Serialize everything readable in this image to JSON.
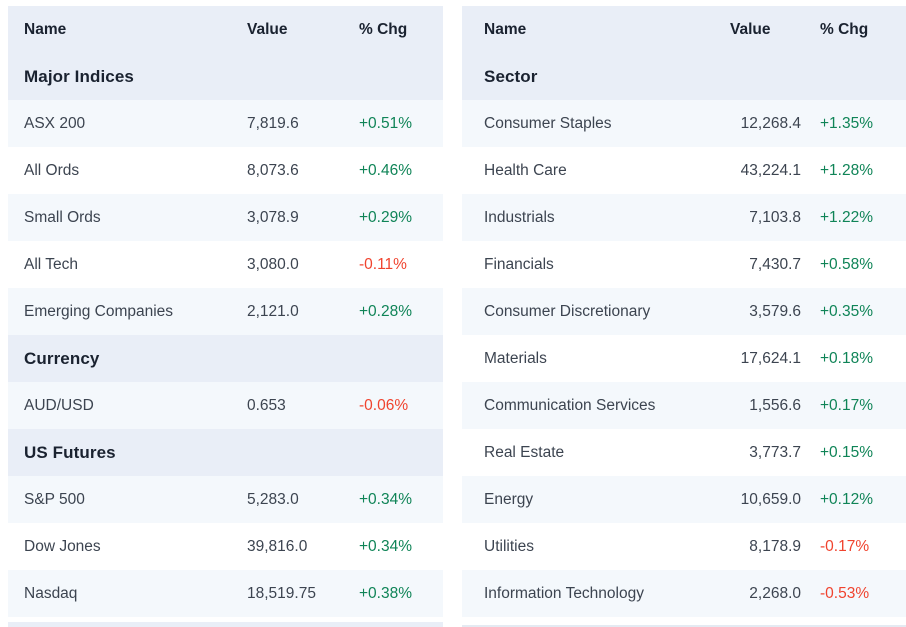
{
  "colors": {
    "positive": "#0f8457",
    "negative": "#f0432e",
    "header_bg": "#e9eef7",
    "row_tint": "#f4f8fc",
    "text_dark": "#1a2230",
    "text_body": "#3c4450"
  },
  "tables": [
    {
      "id": "indices",
      "columns": {
        "name": "Name",
        "value": "Value",
        "chg": "% Chg"
      },
      "rows": [
        {
          "type": "section",
          "label": "Major Indices"
        },
        {
          "type": "data",
          "name": "ASX 200",
          "value": "7,819.6",
          "chg": "+0.51%",
          "dir": "up"
        },
        {
          "type": "data",
          "name": "All Ords",
          "value": "8,073.6",
          "chg": "+0.46%",
          "dir": "up"
        },
        {
          "type": "data",
          "name": "Small Ords",
          "value": "3,078.9",
          "chg": "+0.29%",
          "dir": "up"
        },
        {
          "type": "data",
          "name": "All Tech",
          "value": "3,080.0",
          "chg": "-0.11%",
          "dir": "down"
        },
        {
          "type": "data",
          "name": "Emerging Companies",
          "value": "2,121.0",
          "chg": "+0.28%",
          "dir": "up"
        },
        {
          "type": "section",
          "label": "Currency"
        },
        {
          "type": "data",
          "name": "AUD/USD",
          "value": "0.653",
          "chg": "-0.06%",
          "dir": "down"
        },
        {
          "type": "section",
          "label": "US Futures"
        },
        {
          "type": "data",
          "name": "S&P 500",
          "value": "5,283.0",
          "chg": "+0.34%",
          "dir": "up"
        },
        {
          "type": "data",
          "name": "Dow Jones",
          "value": "39,816.0",
          "chg": "+0.34%",
          "dir": "up"
        },
        {
          "type": "data",
          "name": "Nasdaq",
          "value": "18,519.75",
          "chg": "+0.38%",
          "dir": "up"
        }
      ]
    },
    {
      "id": "sectors",
      "columns": {
        "name": "Name",
        "value": "Value",
        "chg": "% Chg"
      },
      "rows": [
        {
          "type": "section",
          "label": "Sector"
        },
        {
          "type": "data",
          "name": "Consumer Staples",
          "value": "12,268.4",
          "chg": "+1.35%",
          "dir": "up"
        },
        {
          "type": "data",
          "name": "Health Care",
          "value": "43,224.1",
          "chg": "+1.28%",
          "dir": "up"
        },
        {
          "type": "data",
          "name": "Industrials",
          "value": "7,103.8",
          "chg": "+1.22%",
          "dir": "up"
        },
        {
          "type": "data",
          "name": "Financials",
          "value": "7,430.7",
          "chg": "+0.58%",
          "dir": "up"
        },
        {
          "type": "data",
          "name": "Consumer Discretionary",
          "value": "3,579.6",
          "chg": "+0.35%",
          "dir": "up"
        },
        {
          "type": "data",
          "name": "Materials",
          "value": "17,624.1",
          "chg": "+0.18%",
          "dir": "up"
        },
        {
          "type": "data",
          "name": "Communication Services",
          "value": "1,556.6",
          "chg": "+0.17%",
          "dir": "up"
        },
        {
          "type": "data",
          "name": "Real Estate",
          "value": "3,773.7",
          "chg": "+0.15%",
          "dir": "up"
        },
        {
          "type": "data",
          "name": "Energy",
          "value": "10,659.0",
          "chg": "+0.12%",
          "dir": "up"
        },
        {
          "type": "data",
          "name": "Utilities",
          "value": "8,178.9",
          "chg": "-0.17%",
          "dir": "down"
        },
        {
          "type": "data",
          "name": "Information Technology",
          "value": "2,268.0",
          "chg": "-0.53%",
          "dir": "down"
        }
      ]
    }
  ]
}
